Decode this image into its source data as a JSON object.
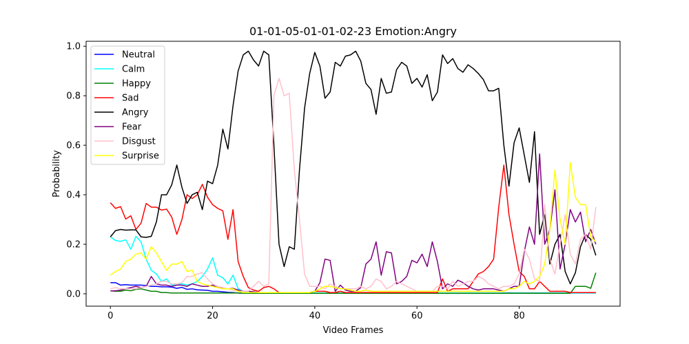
{
  "chart_data": {
    "type": "line",
    "title": "01-01-05-01-01-02-23 Emotion:Angry",
    "xlabel": "Video Frames",
    "ylabel": "Probability",
    "xlim": [
      -4.75,
      99.75
    ],
    "ylim": [
      -0.05,
      1.02
    ],
    "xticks": [
      0,
      20,
      40,
      60,
      80
    ],
    "yticks": [
      0.0,
      0.2,
      0.4,
      0.6,
      0.8,
      1.0
    ],
    "yticklabels": [
      "0.0",
      "0.2",
      "0.4",
      "0.6",
      "0.8",
      "1.0"
    ],
    "grid": false,
    "legend_position": "upper-left",
    "x": [
      0,
      1,
      2,
      3,
      4,
      5,
      6,
      7,
      8,
      9,
      10,
      11,
      12,
      13,
      14,
      15,
      16,
      17,
      18,
      19,
      20,
      21,
      22,
      23,
      24,
      25,
      26,
      27,
      28,
      29,
      30,
      31,
      32,
      33,
      34,
      35,
      36,
      37,
      38,
      39,
      40,
      41,
      42,
      43,
      44,
      45,
      46,
      47,
      48,
      49,
      50,
      51,
      52,
      53,
      54,
      55,
      56,
      57,
      58,
      59,
      60,
      61,
      62,
      63,
      64,
      65,
      66,
      67,
      68,
      69,
      70,
      71,
      72,
      73,
      74,
      75,
      76,
      77,
      78,
      79,
      80,
      81,
      82,
      83,
      84,
      85,
      86,
      87,
      88,
      89,
      90,
      91,
      92,
      93,
      94,
      95
    ],
    "series": [
      {
        "name": "Neutral",
        "color": "#0000ff",
        "values": [
          0.045,
          0.045,
          0.035,
          0.037,
          0.035,
          0.035,
          0.035,
          0.033,
          0.03,
          0.03,
          0.028,
          0.028,
          0.027,
          0.022,
          0.026,
          0.018,
          0.02,
          0.016,
          0.015,
          0.014,
          0.01,
          0.01,
          0.008,
          0.006,
          0.005,
          0.003,
          0.002,
          0.002,
          0.002,
          0.002,
          0.002,
          0.002,
          0.002,
          0.002,
          0.002,
          0.002,
          0.002,
          0.002,
          0.002,
          0.002,
          0.002,
          0.002,
          0.002,
          0.002,
          0.002,
          0.002,
          0.002,
          0.002,
          0.002,
          0.002,
          0.002,
          0.002,
          0.002,
          0.002,
          0.002,
          0.002,
          0.002,
          0.002,
          0.002,
          0.002,
          0.002,
          0.002,
          0.002,
          0.002,
          0.002,
          0.002,
          0.002,
          0.002,
          0.002,
          0.002,
          0.002,
          0.002,
          0.002,
          0.002,
          0.002,
          0.002,
          0.002,
          0.003,
          0.004,
          0.003,
          0.003,
          0.003,
          0.003,
          0.003,
          0.003,
          0.003,
          0.003,
          0.003,
          0.003,
          0.003,
          0.003,
          0.003,
          0.003,
          0.003,
          0.003,
          0.003
        ]
      },
      {
        "name": "Calm",
        "color": "#00ffff",
        "values": [
          0.23,
          0.215,
          0.212,
          0.218,
          0.18,
          0.232,
          0.21,
          0.14,
          0.095,
          0.08,
          0.05,
          0.06,
          0.035,
          0.04,
          0.04,
          0.036,
          0.04,
          0.05,
          0.07,
          0.1,
          0.145,
          0.075,
          0.065,
          0.04,
          0.075,
          0.02,
          0.01,
          0.006,
          0.004,
          0.004,
          0.003,
          0.003,
          0.003,
          0.003,
          0.003,
          0.003,
          0.003,
          0.003,
          0.003,
          0.003,
          0.003,
          0.003,
          0.003,
          0.003,
          0.003,
          0.003,
          0.003,
          0.003,
          0.003,
          0.003,
          0.003,
          0.003,
          0.003,
          0.003,
          0.003,
          0.003,
          0.003,
          0.003,
          0.003,
          0.003,
          0.003,
          0.003,
          0.003,
          0.003,
          0.003,
          0.003,
          0.003,
          0.003,
          0.003,
          0.003,
          0.003,
          0.003,
          0.003,
          0.003,
          0.003,
          0.003,
          0.003,
          0.003,
          0.003,
          0.003,
          0.003,
          0.003,
          0.003,
          0.003,
          0.003,
          0.003,
          0.003,
          0.003,
          0.003,
          0.003,
          0.003,
          0.003,
          0.003,
          0.003,
          0.003,
          0.003
        ]
      },
      {
        "name": "Happy",
        "color": "#008000",
        "values": [
          0.012,
          0.01,
          0.01,
          0.015,
          0.012,
          0.018,
          0.02,
          0.015,
          0.01,
          0.01,
          0.005,
          0.005,
          0.003,
          0.003,
          0.003,
          0.003,
          0.003,
          0.003,
          0.003,
          0.003,
          0.003,
          0.003,
          0.003,
          0.003,
          0.003,
          0.003,
          0.002,
          0.002,
          0.002,
          0.002,
          0.002,
          0.002,
          0.002,
          0.002,
          0.002,
          0.002,
          0.002,
          0.002,
          0.002,
          0.002,
          0.002,
          0.002,
          0.002,
          0.002,
          0.002,
          0.002,
          0.002,
          0.002,
          0.002,
          0.002,
          0.002,
          0.002,
          0.002,
          0.002,
          0.002,
          0.002,
          0.002,
          0.002,
          0.002,
          0.002,
          0.002,
          0.002,
          0.002,
          0.002,
          0.002,
          0.002,
          0.002,
          0.002,
          0.002,
          0.002,
          0.002,
          0.002,
          0.002,
          0.002,
          0.002,
          0.002,
          0.002,
          0.002,
          0.002,
          0.002,
          0.002,
          0.002,
          0.002,
          0.002,
          0.002,
          0.002,
          0.002,
          0.002,
          0.002,
          0.002,
          0.002,
          0.03,
          0.03,
          0.03,
          0.022,
          0.085
        ]
      },
      {
        "name": "Sad",
        "color": "#ff0000",
        "values": [
          0.368,
          0.345,
          0.352,
          0.302,
          0.315,
          0.26,
          0.285,
          0.365,
          0.35,
          0.35,
          0.338,
          0.342,
          0.31,
          0.24,
          0.3,
          0.4,
          0.385,
          0.4,
          0.442,
          0.39,
          0.36,
          0.345,
          0.335,
          0.22,
          0.34,
          0.13,
          0.07,
          0.025,
          0.015,
          0.01,
          0.025,
          0.03,
          0.02,
          0.005,
          0.005,
          0.005,
          0.005,
          0.005,
          0.005,
          0.005,
          0.01,
          0.01,
          0.01,
          0.005,
          0.005,
          0.01,
          0.005,
          0.005,
          0.005,
          0.005,
          0.005,
          0.005,
          0.005,
          0.005,
          0.005,
          0.005,
          0.005,
          0.005,
          0.005,
          0.005,
          0.005,
          0.005,
          0.005,
          0.005,
          0.005,
          0.06,
          0.01,
          0.02,
          0.02,
          0.02,
          0.02,
          0.05,
          0.08,
          0.09,
          0.11,
          0.14,
          0.35,
          0.52,
          0.32,
          0.2,
          0.09,
          0.07,
          0.02,
          0.02,
          0.05,
          0.03,
          0.01,
          0.01,
          0.01,
          0.01,
          0.005,
          0.005,
          0.005,
          0.005,
          0.005,
          0.005
        ]
      },
      {
        "name": "Angry",
        "color": "#000000",
        "values": [
          0.23,
          0.255,
          0.26,
          0.257,
          0.258,
          0.258,
          0.23,
          0.228,
          0.232,
          0.29,
          0.4,
          0.4,
          0.44,
          0.52,
          0.43,
          0.365,
          0.4,
          0.41,
          0.34,
          0.455,
          0.445,
          0.52,
          0.665,
          0.585,
          0.76,
          0.9,
          0.965,
          0.98,
          0.945,
          0.92,
          0.98,
          0.965,
          0.6,
          0.2,
          0.11,
          0.19,
          0.18,
          0.5,
          0.75,
          0.89,
          0.975,
          0.92,
          0.79,
          0.815,
          0.935,
          0.92,
          0.96,
          0.965,
          0.98,
          0.94,
          0.85,
          0.825,
          0.725,
          0.87,
          0.81,
          0.815,
          0.905,
          0.935,
          0.92,
          0.85,
          0.87,
          0.835,
          0.885,
          0.78,
          0.815,
          0.965,
          0.93,
          0.95,
          0.91,
          0.895,
          0.925,
          0.91,
          0.89,
          0.865,
          0.82,
          0.82,
          0.83,
          0.6,
          0.435,
          0.61,
          0.67,
          0.56,
          0.45,
          0.655,
          0.24,
          0.32,
          0.12,
          0.2,
          0.24,
          0.09,
          0.04,
          0.085,
          0.19,
          0.24,
          0.22,
          0.155
        ]
      },
      {
        "name": "Fear",
        "color": "#800080",
        "values": [
          0.012,
          0.012,
          0.015,
          0.02,
          0.025,
          0.03,
          0.025,
          0.03,
          0.07,
          0.04,
          0.035,
          0.035,
          0.03,
          0.035,
          0.035,
          0.03,
          0.04,
          0.035,
          0.03,
          0.03,
          0.035,
          0.025,
          0.022,
          0.02,
          0.022,
          0.015,
          0.01,
          0.01,
          0.008,
          0.005,
          0.005,
          0.005,
          0.005,
          0.005,
          0.005,
          0.005,
          0.005,
          0.005,
          0.005,
          0.005,
          0.01,
          0.045,
          0.14,
          0.135,
          0.01,
          0.035,
          0.015,
          0.01,
          0.01,
          0.025,
          0.12,
          0.14,
          0.21,
          0.075,
          0.17,
          0.165,
          0.04,
          0.05,
          0.07,
          0.135,
          0.125,
          0.16,
          0.11,
          0.21,
          0.13,
          0.02,
          0.04,
          0.03,
          0.055,
          0.045,
          0.03,
          0.02,
          0.015,
          0.02,
          0.02,
          0.02,
          0.015,
          0.01,
          0.02,
          0.03,
          0.03,
          0.17,
          0.27,
          0.2,
          0.565,
          0.2,
          0.26,
          0.42,
          0.1,
          0.2,
          0.34,
          0.29,
          0.33,
          0.21,
          0.26,
          0.2
        ]
      },
      {
        "name": "Disgust",
        "color": "#ffc0cb",
        "values": [
          0.02,
          0.025,
          0.02,
          0.02,
          0.02,
          0.02,
          0.025,
          0.03,
          0.035,
          0.04,
          0.05,
          0.05,
          0.04,
          0.04,
          0.045,
          0.07,
          0.07,
          0.08,
          0.085,
          0.06,
          0.04,
          0.03,
          0.025,
          0.02,
          0.015,
          0.01,
          0.01,
          0.01,
          0.03,
          0.05,
          0.03,
          0.04,
          0.8,
          0.87,
          0.8,
          0.81,
          0.5,
          0.3,
          0.08,
          0.03,
          0.03,
          0.03,
          0.02,
          0.04,
          0.03,
          0.02,
          0.02,
          0.02,
          0.02,
          0.03,
          0.02,
          0.03,
          0.06,
          0.05,
          0.02,
          0.03,
          0.05,
          0.04,
          0.03,
          0.02,
          0.01,
          0.01,
          0.01,
          0.01,
          0.03,
          0.03,
          0.02,
          0.05,
          0.03,
          0.04,
          0.05,
          0.05,
          0.07,
          0.06,
          0.04,
          0.03,
          0.02,
          0.03,
          0.03,
          0.04,
          0.08,
          0.18,
          0.14,
          0.06,
          0.05,
          0.36,
          0.14,
          0.08,
          0.2,
          0.32,
          0.16,
          0.12,
          0.22,
          0.24,
          0.18,
          0.35
        ]
      },
      {
        "name": "Surprise",
        "color": "#ffff00",
        "values": [
          0.075,
          0.09,
          0.1,
          0.13,
          0.14,
          0.16,
          0.165,
          0.14,
          0.19,
          0.165,
          0.13,
          0.095,
          0.12,
          0.12,
          0.13,
          0.09,
          0.095,
          0.05,
          0.04,
          0.035,
          0.03,
          0.025,
          0.02,
          0.02,
          0.02,
          0.01,
          0.005,
          0.005,
          0.005,
          0.005,
          0.005,
          0.005,
          0.005,
          0.005,
          0.005,
          0.005,
          0.005,
          0.005,
          0.005,
          0.005,
          0.01,
          0.02,
          0.03,
          0.03,
          0.025,
          0.02,
          0.02,
          0.015,
          0.01,
          0.01,
          0.015,
          0.01,
          0.01,
          0.01,
          0.01,
          0.01,
          0.01,
          0.01,
          0.01,
          0.01,
          0.01,
          0.01,
          0.01,
          0.01,
          0.01,
          0.01,
          0.01,
          0.01,
          0.01,
          0.01,
          0.01,
          0.01,
          0.01,
          0.01,
          0.01,
          0.01,
          0.01,
          0.01,
          0.02,
          0.02,
          0.03,
          0.05,
          0.04,
          0.05,
          0.07,
          0.12,
          0.26,
          0.5,
          0.3,
          0.2,
          0.53,
          0.39,
          0.36,
          0.36,
          0.23,
          0.21
        ]
      }
    ]
  }
}
